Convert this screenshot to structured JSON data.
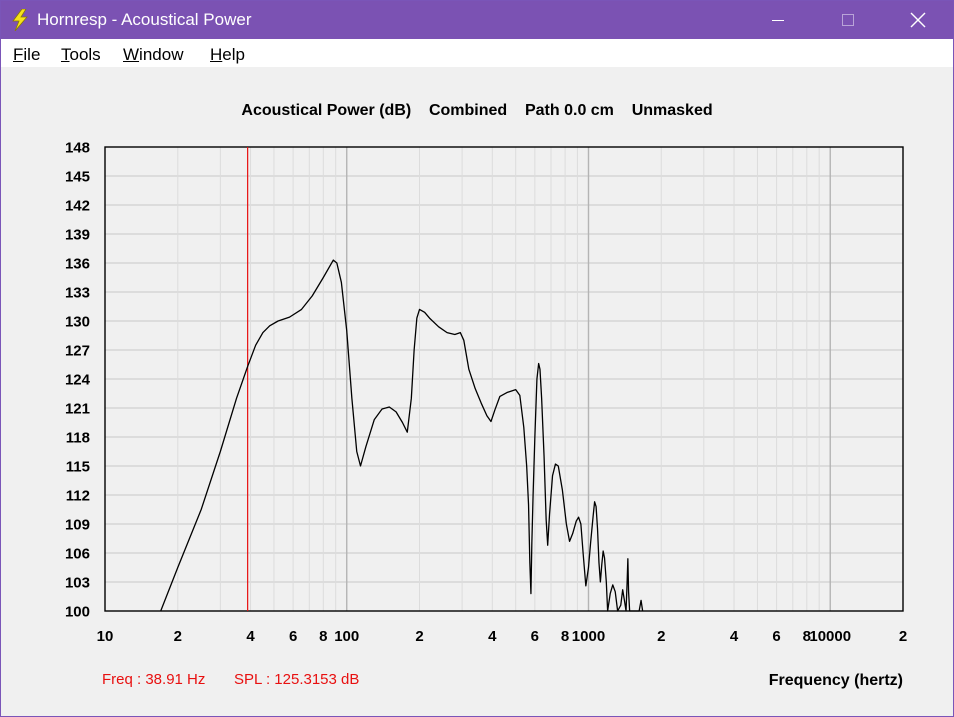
{
  "window": {
    "title": "Hornresp - Acoustical Power",
    "controls": {
      "minimize": "minimize",
      "maximize": "maximize",
      "close": "close"
    }
  },
  "menu": [
    {
      "label": "File",
      "underline": "F",
      "rest": "ile"
    },
    {
      "label": "Tools",
      "underline": "T",
      "rest": "ools"
    },
    {
      "label": "Window",
      "underline": "W",
      "rest": "indow"
    },
    {
      "label": "Help",
      "underline": "H",
      "rest": "elp"
    }
  ],
  "chart_header": "Acoustical Power (dB)    Combined    Path 0.0 cm    Unmasked",
  "readout": {
    "freq": "Freq : 38.91 Hz",
    "spl": "SPL : 125.3153 dB",
    "color": "#e81010"
  },
  "chart_data": {
    "type": "line",
    "title": "Acoustical Power (dB)    Combined    Path 0.0 cm    Unmasked",
    "xlabel": "Frequency (hertz)",
    "ylabel": "",
    "x_scale": "log",
    "xlim": [
      10,
      20000
    ],
    "ylim": [
      100,
      148
    ],
    "y_ticks": [
      100,
      103,
      106,
      109,
      112,
      115,
      118,
      121,
      124,
      127,
      130,
      133,
      136,
      139,
      142,
      145,
      148
    ],
    "x_tick_labels": [
      {
        "value": 10,
        "label": "10"
      },
      {
        "value": 20,
        "label": "2"
      },
      {
        "value": 40,
        "label": "4"
      },
      {
        "value": 60,
        "label": "6"
      },
      {
        "value": 80,
        "label": "8"
      },
      {
        "value": 100,
        "label": "100"
      },
      {
        "value": 200,
        "label": "2"
      },
      {
        "value": 400,
        "label": "4"
      },
      {
        "value": 600,
        "label": "6"
      },
      {
        "value": 800,
        "label": "8"
      },
      {
        "value": 1000,
        "label": "1000"
      },
      {
        "value": 2000,
        "label": "2"
      },
      {
        "value": 4000,
        "label": "4"
      },
      {
        "value": 6000,
        "label": "6"
      },
      {
        "value": 8000,
        "label": "8"
      },
      {
        "value": 10000,
        "label": "10000"
      },
      {
        "value": 20000,
        "label": "2"
      }
    ],
    "grid": true,
    "line_color": "#000000",
    "cursor_color": "#e81010",
    "cursor_x": 38.91,
    "series": [
      {
        "values": [
          [
            17,
            100
          ],
          [
            20,
            104.5
          ],
          [
            25,
            110.5
          ],
          [
            30,
            116.5
          ],
          [
            35,
            122
          ],
          [
            38.91,
            125.3
          ],
          [
            42,
            127.5
          ],
          [
            45,
            128.8
          ],
          [
            48,
            129.5
          ],
          [
            52,
            130
          ],
          [
            58,
            130.4
          ],
          [
            65,
            131.2
          ],
          [
            72,
            132.6
          ],
          [
            80,
            134.5
          ],
          [
            88,
            136.3
          ],
          [
            91,
            136
          ],
          [
            95,
            134
          ],
          [
            100,
            129
          ],
          [
            105,
            122
          ],
          [
            110,
            116.5
          ],
          [
            114,
            115
          ],
          [
            120,
            117
          ],
          [
            130,
            119.8
          ],
          [
            140,
            120.9
          ],
          [
            150,
            121.1
          ],
          [
            160,
            120.6
          ],
          [
            170,
            119.5
          ],
          [
            178,
            118.5
          ],
          [
            185,
            122
          ],
          [
            190,
            127
          ],
          [
            195,
            130.3
          ],
          [
            200,
            131.2
          ],
          [
            210,
            130.9
          ],
          [
            220,
            130.3
          ],
          [
            240,
            129.4
          ],
          [
            260,
            128.8
          ],
          [
            280,
            128.6
          ],
          [
            295,
            128.8
          ],
          [
            305,
            128
          ],
          [
            320,
            125
          ],
          [
            340,
            123
          ],
          [
            360,
            121.5
          ],
          [
            380,
            120.2
          ],
          [
            395,
            119.6
          ],
          [
            410,
            120.8
          ],
          [
            430,
            122.2
          ],
          [
            460,
            122.6
          ],
          [
            500,
            122.9
          ],
          [
            520,
            122.3
          ],
          [
            540,
            119
          ],
          [
            555,
            115
          ],
          [
            565,
            111
          ],
          [
            572,
            105
          ],
          [
            578,
            101.8
          ],
          [
            583,
            107
          ],
          [
            590,
            112
          ],
          [
            600,
            118
          ],
          [
            612,
            124
          ],
          [
            622,
            125.6
          ],
          [
            630,
            125
          ],
          [
            640,
            122
          ],
          [
            655,
            116
          ],
          [
            668,
            109.5
          ],
          [
            678,
            106.8
          ],
          [
            690,
            110
          ],
          [
            710,
            114
          ],
          [
            730,
            115.2
          ],
          [
            750,
            115
          ],
          [
            780,
            112.5
          ],
          [
            810,
            109
          ],
          [
            835,
            107.2
          ],
          [
            860,
            108
          ],
          [
            890,
            109.3
          ],
          [
            910,
            109.7
          ],
          [
            930,
            109
          ],
          [
            950,
            106
          ],
          [
            975,
            102.6
          ],
          [
            1000,
            104.5
          ],
          [
            1020,
            107
          ],
          [
            1045,
            109.8
          ],
          [
            1060,
            111.3
          ],
          [
            1075,
            110.8
          ],
          [
            1090,
            108.5
          ],
          [
            1105,
            105
          ],
          [
            1120,
            103
          ],
          [
            1135,
            104.8
          ],
          [
            1150,
            106.2
          ],
          [
            1165,
            105.5
          ],
          [
            1185,
            103
          ],
          [
            1200,
            100
          ],
          [
            1230,
            101.8
          ],
          [
            1260,
            102.7
          ],
          [
            1290,
            102
          ],
          [
            1320,
            100
          ],
          [
            1360,
            100.6
          ],
          [
            1385,
            102.2
          ],
          [
            1410,
            101
          ],
          [
            1430,
            100
          ],
          [
            1445,
            103
          ],
          [
            1455,
            105.4
          ],
          [
            1465,
            102
          ],
          [
            1480,
            100
          ],
          [
            1620,
            100
          ],
          [
            1650,
            101.1
          ],
          [
            1675,
            100
          ]
        ]
      }
    ]
  }
}
